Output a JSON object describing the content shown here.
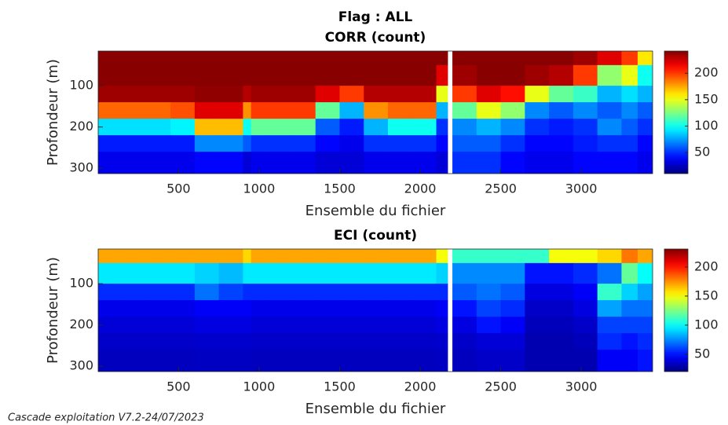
{
  "title": "Flag : ALL",
  "footer": "Cascade exploitation V7.2-24/07/2023",
  "chart_data": [
    {
      "type": "heatmap",
      "title": "CORR (count)",
      "xlabel": "Ensemble du fichier",
      "ylabel": "Profondeur (m)",
      "colormap": "jet",
      "x_edges": [
        0,
        150,
        300,
        450,
        600,
        750,
        900,
        950,
        1050,
        1200,
        1350,
        1500,
        1650,
        1800,
        1950,
        2100,
        2170,
        2200,
        2350,
        2500,
        2650,
        2800,
        2950,
        3100,
        3250,
        3350,
        3450
      ],
      "y_edges": [
        16,
        50,
        100,
        140,
        180,
        220,
        260,
        313
      ],
      "z": [
        [
          240,
          240,
          240,
          240,
          240,
          240,
          240,
          240,
          240,
          240,
          240,
          240,
          240,
          240,
          240,
          240,
          null,
          240,
          240,
          240,
          240,
          240,
          235,
          220,
          200,
          160
        ],
        [
          240,
          240,
          240,
          240,
          240,
          240,
          240,
          240,
          240,
          240,
          240,
          240,
          240,
          240,
          240,
          220,
          null,
          235,
          240,
          240,
          235,
          230,
          200,
          130,
          150,
          100
        ],
        [
          235,
          235,
          235,
          235,
          238,
          238,
          230,
          235,
          235,
          235,
          220,
          200,
          230,
          230,
          230,
          150,
          null,
          200,
          220,
          210,
          150,
          120,
          110,
          80,
          90,
          80
        ],
        [
          190,
          190,
          190,
          195,
          220,
          220,
          180,
          200,
          200,
          200,
          120,
          80,
          180,
          190,
          190,
          80,
          null,
          120,
          150,
          130,
          70,
          60,
          70,
          60,
          70,
          60
        ],
        [
          90,
          90,
          90,
          95,
          170,
          170,
          100,
          120,
          120,
          120,
          60,
          45,
          80,
          100,
          100,
          50,
          null,
          70,
          80,
          70,
          50,
          45,
          50,
          70,
          60,
          50
        ],
        [
          45,
          45,
          45,
          45,
          70,
          70,
          60,
          50,
          50,
          50,
          40,
          35,
          50,
          50,
          50,
          40,
          null,
          60,
          60,
          50,
          40,
          40,
          45,
          50,
          50,
          40
        ],
        [
          35,
          35,
          35,
          35,
          40,
          40,
          30,
          35,
          35,
          35,
          30,
          30,
          35,
          35,
          35,
          30,
          null,
          50,
          50,
          40,
          35,
          35,
          40,
          40,
          40,
          35
        ]
      ],
      "xlim": [
        1,
        3443
      ],
      "xticks": [
        500,
        1000,
        1500,
        2000,
        2500,
        3000
      ],
      "ylim": [
        16,
        313
      ],
      "yticks": [
        100,
        200,
        300
      ],
      "clim": [
        10,
        242
      ],
      "cticks": [
        50,
        100,
        150,
        200
      ]
    },
    {
      "type": "heatmap",
      "title": "ECI (count)",
      "xlabel": "Ensemble du fichier",
      "ylabel": "Profondeur (m)",
      "colormap": "jet",
      "x_edges": [
        0,
        150,
        300,
        450,
        600,
        750,
        900,
        950,
        1050,
        1200,
        1350,
        1500,
        1650,
        1800,
        1950,
        2100,
        2170,
        2200,
        2350,
        2500,
        2650,
        2800,
        2950,
        3100,
        3250,
        3350,
        3450
      ],
      "y_edges": [
        16,
        50,
        100,
        140,
        180,
        220,
        260,
        313
      ],
      "z": [
        [
          170,
          170,
          170,
          170,
          170,
          170,
          160,
          170,
          170,
          170,
          170,
          170,
          170,
          170,
          170,
          150,
          null,
          110,
          110,
          110,
          110,
          150,
          150,
          160,
          180,
          170
        ],
        [
          95,
          95,
          95,
          95,
          90,
          85,
          95,
          95,
          95,
          95,
          95,
          95,
          95,
          95,
          95,
          90,
          null,
          75,
          75,
          75,
          50,
          50,
          55,
          70,
          120,
          100
        ],
        [
          55,
          55,
          55,
          55,
          70,
          60,
          55,
          55,
          55,
          55,
          55,
          55,
          55,
          55,
          55,
          55,
          null,
          65,
          70,
          65,
          40,
          40,
          45,
          110,
          90,
          80
        ],
        [
          42,
          42,
          42,
          42,
          45,
          45,
          45,
          42,
          42,
          42,
          42,
          42,
          42,
          42,
          42,
          45,
          null,
          50,
          60,
          55,
          35,
          35,
          40,
          80,
          70,
          70
        ],
        [
          38,
          38,
          38,
          38,
          40,
          40,
          40,
          38,
          38,
          38,
          38,
          38,
          38,
          38,
          38,
          40,
          null,
          40,
          50,
          45,
          32,
          32,
          35,
          60,
          60,
          60
        ],
        [
          35,
          35,
          35,
          35,
          36,
          36,
          36,
          35,
          35,
          35,
          35,
          35,
          35,
          35,
          35,
          36,
          null,
          35,
          38,
          38,
          30,
          30,
          32,
          55,
          50,
          55
        ],
        [
          33,
          33,
          33,
          33,
          34,
          34,
          34,
          33,
          33,
          33,
          33,
          33,
          33,
          33,
          33,
          34,
          null,
          33,
          35,
          35,
          30,
          30,
          30,
          45,
          45,
          50
        ]
      ],
      "xlim": [
        1,
        3443
      ],
      "xticks": [
        500,
        1000,
        1500,
        2000,
        2500,
        3000
      ],
      "ylim": [
        16,
        313
      ],
      "yticks": [
        100,
        200,
        300
      ],
      "clim": [
        20,
        231
      ],
      "cticks": [
        50,
        100,
        150,
        200
      ]
    }
  ]
}
